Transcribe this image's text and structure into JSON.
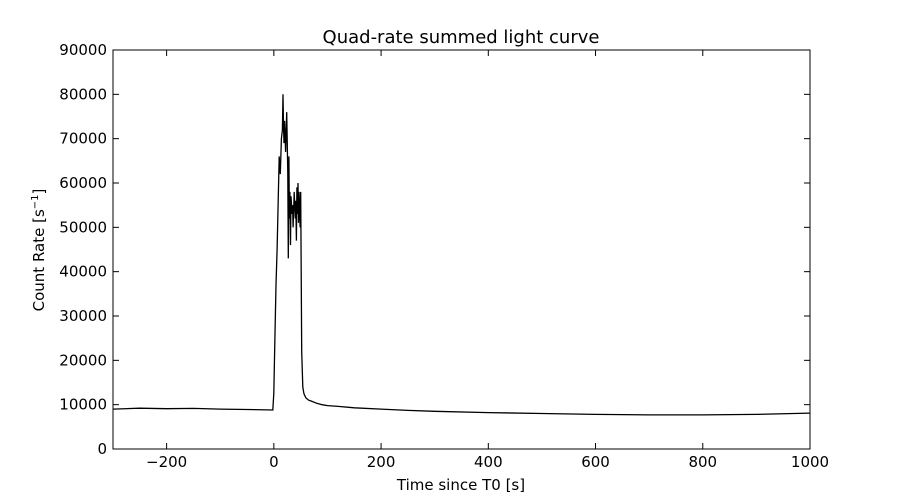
{
  "chart_data": {
    "type": "line",
    "title": "Quad-rate summed light curve",
    "xlabel": "Time since T0 [s]",
    "ylabel_main": "Count Rate [s",
    "ylabel_sup": "−1",
    "ylabel_end": "]",
    "xlim": [
      -300,
      1000
    ],
    "ylim": [
      0,
      90000
    ],
    "x_ticks": [
      -200,
      0,
      200,
      400,
      600,
      800,
      1000
    ],
    "x_tick_labels": [
      "−200",
      "0",
      "200",
      "400",
      "600",
      "800",
      "1000"
    ],
    "y_ticks": [
      0,
      10000,
      20000,
      30000,
      40000,
      50000,
      60000,
      70000,
      80000,
      90000
    ],
    "y_tick_labels": [
      "0",
      "10000",
      "20000",
      "30000",
      "40000",
      "50000",
      "60000",
      "70000",
      "80000",
      "90000"
    ],
    "grid": false,
    "series": [
      {
        "color": "#000000",
        "x": [
          -300,
          -250,
          -200,
          -150,
          -100,
          -50,
          -2,
          0,
          2,
          4,
          6,
          8,
          10,
          12,
          14,
          16,
          17,
          18,
          19,
          20,
          22,
          24,
          26,
          27,
          28,
          29,
          30,
          31,
          32,
          34,
          35,
          36,
          38,
          40,
          41,
          42,
          43,
          44,
          45,
          46,
          47,
          48,
          49,
          50,
          51,
          52,
          54,
          56,
          58,
          60,
          65,
          70,
          80,
          90,
          100,
          120,
          150,
          200,
          250,
          300,
          400,
          500,
          600,
          700,
          800,
          900,
          1000
        ],
        "y": [
          9000,
          9200,
          9100,
          9150,
          9000,
          8900,
          8800,
          12500,
          25000,
          37000,
          45000,
          55000,
          66000,
          62000,
          70000,
          72000,
          80000,
          73000,
          69000,
          74000,
          67000,
          76000,
          62000,
          43000,
          66000,
          52000,
          58000,
          46000,
          57000,
          53000,
          55000,
          50000,
          58000,
          52000,
          56000,
          47000,
          59000,
          53000,
          60000,
          51000,
          58000,
          55000,
          50000,
          58000,
          40000,
          22000,
          14000,
          12500,
          12000,
          11500,
          11000,
          10800,
          10300,
          10000,
          9800,
          9600,
          9300,
          9000,
          8700,
          8500,
          8200,
          8000,
          7800,
          7700,
          7700,
          7800,
          8100
        ]
      }
    ]
  }
}
